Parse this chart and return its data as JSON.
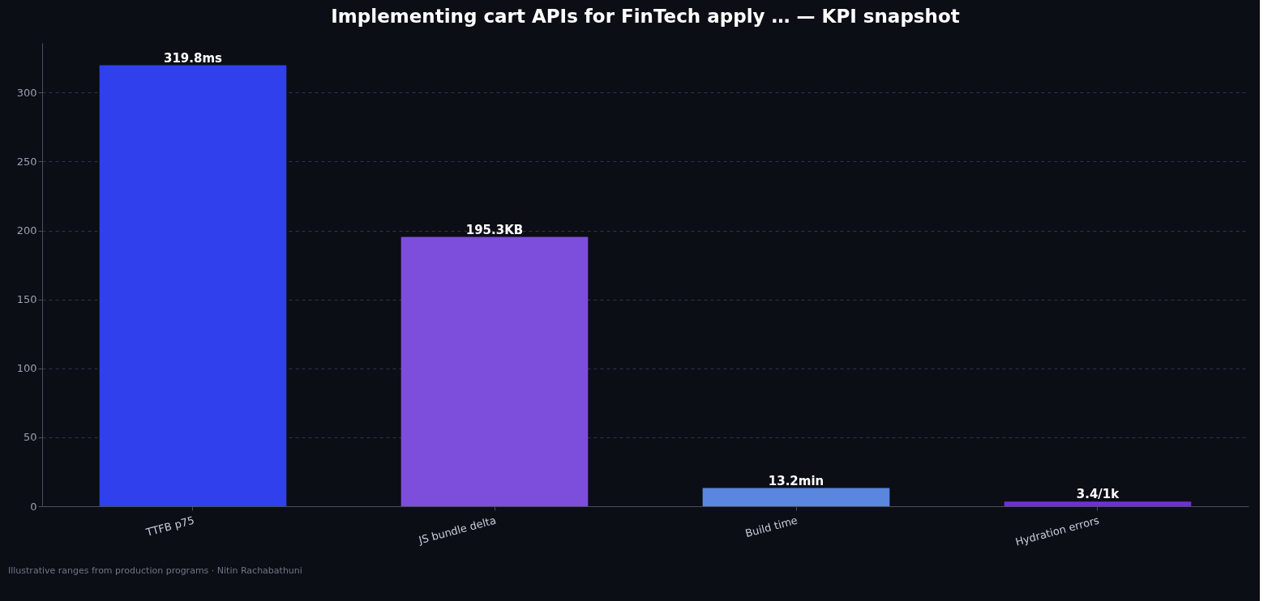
{
  "chart_data": {
    "type": "bar",
    "title": "Implementing cart APIs for FinTech apply … — KPI snapshot",
    "categories": [
      "TTFB p75",
      "JS bundle delta",
      "Build time",
      "Hydration errors"
    ],
    "values": [
      319.8,
      195.3,
      13.2,
      3.4
    ],
    "colors": [
      "#2f40ec",
      "#7d4edc",
      "#5b86e0",
      "#6d30d8"
    ],
    "value_labels": [
      "319.8ms",
      "195.3KB",
      "13.2min",
      "3.4/1k"
    ],
    "ylim": [
      0,
      336
    ],
    "yticks": [
      0,
      50,
      100,
      150,
      200,
      250,
      300
    ],
    "grid": "y",
    "annotations": [
      "Illustrative ranges from production programs · Nitin Rachabathuni"
    ]
  }
}
